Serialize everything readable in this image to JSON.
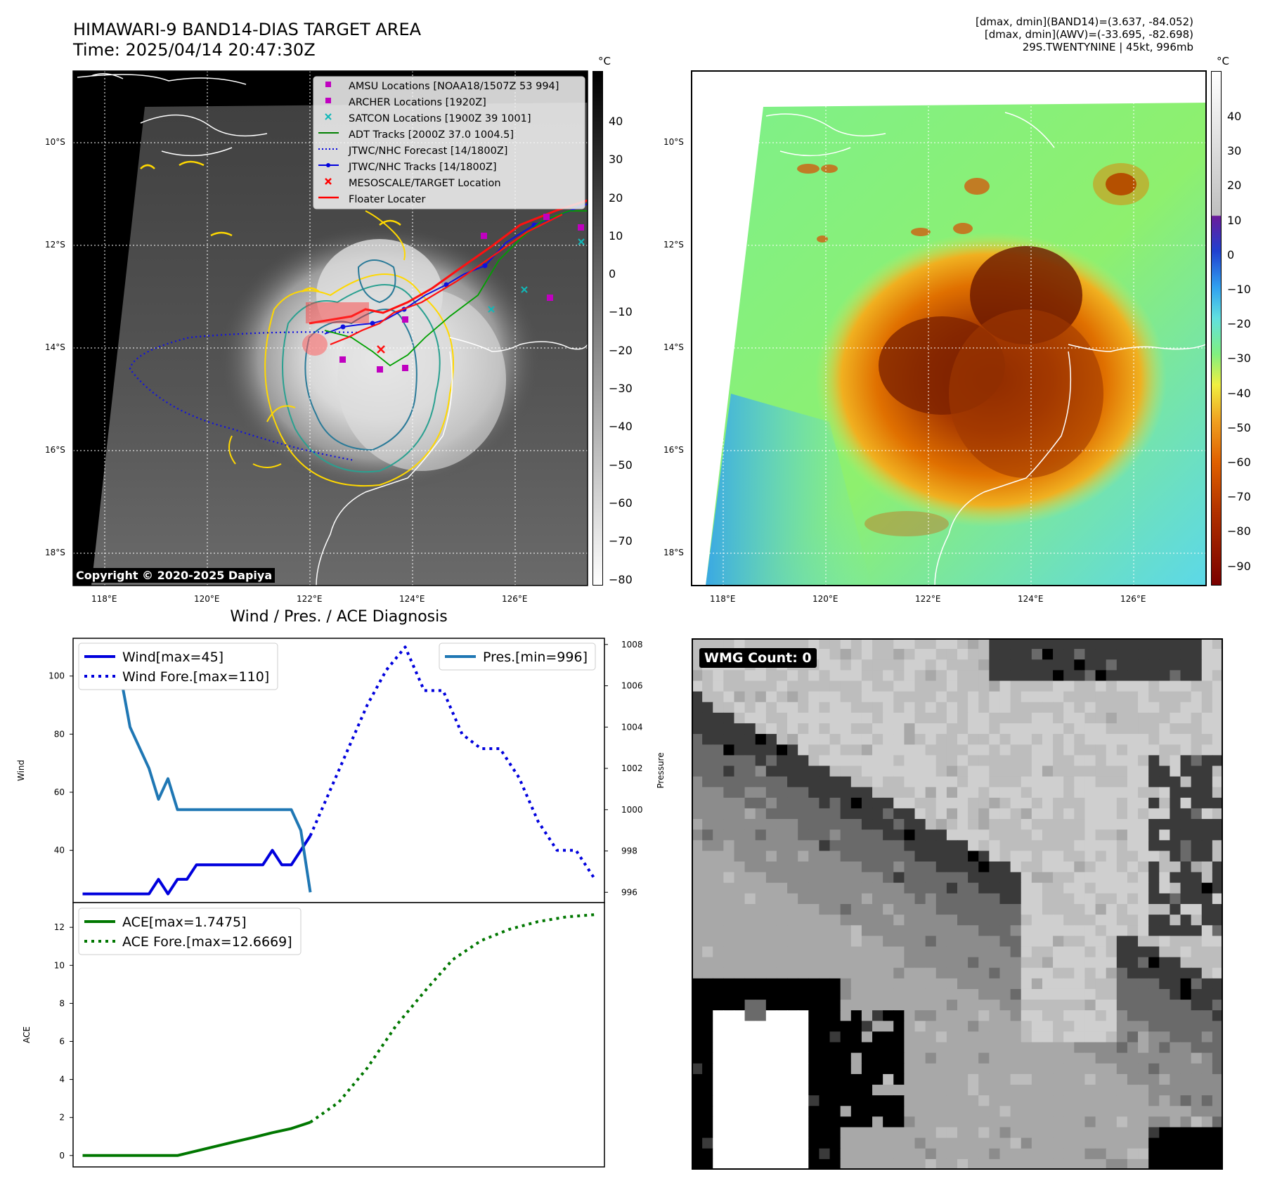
{
  "header": {
    "title_line1": "HIMAWARI-9 BAND14-DIAS TARGET AREA",
    "title_line2": "Time: 2025/04/14 20:47:30Z",
    "info_line1": "[dmax, dmin](BAND14)=(3.637, -84.052)",
    "info_line2": "[dmax, dmin](AWV)=(-33.695, -82.698)",
    "info_line3": "29S.TWENTYNINE | 45kt, 996mb"
  },
  "map_axes": {
    "lat_labels": [
      "10°S",
      "12°S",
      "14°S",
      "16°S",
      "18°S"
    ],
    "lon_labels": [
      "118°E",
      "120°E",
      "122°E",
      "124°E",
      "126°E"
    ],
    "lat_values": [
      -10,
      -12,
      -14,
      -16,
      -18
    ],
    "lon_values": [
      118,
      120,
      122,
      124,
      126
    ]
  },
  "gray_colorbar": {
    "unit": "°C",
    "ticks": [
      "40",
      "30",
      "20",
      "10",
      "0",
      "−10",
      "−20",
      "−30",
      "−40",
      "−50",
      "−60",
      "−70",
      "−80"
    ]
  },
  "color_colorbar": {
    "unit": "°C",
    "ticks": [
      "40",
      "30",
      "20",
      "10",
      "0",
      "−10",
      "−20",
      "−30",
      "−40",
      "−50",
      "−60",
      "−70",
      "−80",
      "−90"
    ]
  },
  "legend": [
    {
      "label": "AMSU Locations [NOAA18/1507Z 53 994]",
      "color": "#c000c0",
      "marker": "square"
    },
    {
      "label": "ARCHER Locations [1920Z]",
      "color": "#c000c0",
      "marker": "square"
    },
    {
      "label": "SATCON Locations [1900Z 39 1001]",
      "color": "#10b8b8",
      "marker": "x"
    },
    {
      "label": "ADT Tracks [2000Z 37.0 1004.5]",
      "color": "#008000",
      "marker": "line"
    },
    {
      "label": "JTWC/NHC Forecast [14/1800Z]",
      "color": "#0000dd",
      "marker": "dotted"
    },
    {
      "label": "JTWC/NHC Tracks [14/1800Z]",
      "color": "#0000dd",
      "marker": "line-dot"
    },
    {
      "label": "MESOSCALE/TARGET Location",
      "color": "#ff0000",
      "marker": "x"
    },
    {
      "label": "Floater Locater",
      "color": "#ff0000",
      "marker": "line"
    }
  ],
  "copyright": "Copyright © 2020-2025 Dapiya",
  "wmg_count": "WMG Count: 0",
  "chart_data": [
    {
      "type": "line",
      "title": "Wind / Pres. / ACE Diagnosis",
      "ylabel": "Wind",
      "ylabel_right": "Pressure",
      "ylim": [
        22,
        113
      ],
      "ylim_right": [
        995.5,
        1008.3
      ],
      "yticks": [
        40,
        60,
        80,
        100
      ],
      "yticks_right": [
        996,
        998,
        1000,
        1002,
        1004,
        1006,
        1008
      ],
      "series": [
        {
          "name": "Wind[max=45]",
          "color": "#0000dd",
          "style": "solid",
          "x": [
            0,
            1,
            2,
            3,
            4,
            5,
            6,
            7,
            8,
            9,
            10,
            11,
            12,
            13,
            14,
            15,
            16,
            17,
            18,
            19,
            20,
            21,
            22,
            23,
            24
          ],
          "values": [
            25,
            25,
            25,
            25,
            25,
            25,
            25,
            25,
            30,
            25,
            30,
            30,
            35,
            35,
            35,
            35,
            35,
            35,
            35,
            35,
            40,
            35,
            35,
            40,
            45
          ]
        },
        {
          "name": "Wind Fore.[max=110]",
          "color": "#0000dd",
          "style": "dotted",
          "x": [
            24,
            26,
            28,
            30,
            32,
            34,
            36,
            38,
            40,
            42,
            44,
            46,
            48,
            50,
            52,
            54
          ],
          "values": [
            45,
            60,
            75,
            90,
            102,
            110,
            95,
            95,
            80,
            75,
            75,
            65,
            50,
            40,
            40,
            30
          ]
        },
        {
          "name": "Pres.[min=996]",
          "color": "#1f77b4",
          "style": "solid",
          "axis": "right",
          "x": [
            0,
            1,
            2,
            3,
            4,
            5,
            6,
            7,
            8,
            9,
            10,
            11,
            12,
            13,
            14,
            15,
            16,
            17,
            18,
            19,
            20,
            21,
            22,
            23,
            24
          ],
          "values": [
            1008,
            1007,
            1007,
            1006.5,
            1006.5,
            1004,
            1003,
            1002,
            1000.5,
            1001.5,
            1000,
            1000,
            1000,
            1000,
            1000,
            1000,
            1000,
            1000,
            1000,
            1000,
            1000,
            1000,
            1000,
            999,
            996
          ]
        }
      ]
    },
    {
      "type": "line",
      "ylabel": "ACE",
      "ylim": [
        -0.6,
        13.3
      ],
      "yticks": [
        0,
        2,
        4,
        6,
        8,
        10,
        12
      ],
      "series": [
        {
          "name": "ACE[max=1.7475]",
          "color": "#007700",
          "style": "solid",
          "x": [
            0,
            2,
            4,
            6,
            8,
            10,
            12,
            14,
            16,
            18,
            20,
            22,
            24
          ],
          "values": [
            0,
            0,
            0,
            0,
            0,
            0,
            0.24,
            0.48,
            0.72,
            0.95,
            1.2,
            1.42,
            1.7475
          ]
        },
        {
          "name": "ACE Fore.[max=12.6669]",
          "color": "#007700",
          "style": "dotted",
          "x": [
            24,
            27,
            30,
            33,
            36,
            39,
            42,
            45,
            48,
            51,
            54
          ],
          "values": [
            1.7475,
            2.8,
            4.6,
            6.8,
            8.6,
            10.3,
            11.3,
            11.9,
            12.3,
            12.55,
            12.6669
          ]
        }
      ]
    }
  ]
}
